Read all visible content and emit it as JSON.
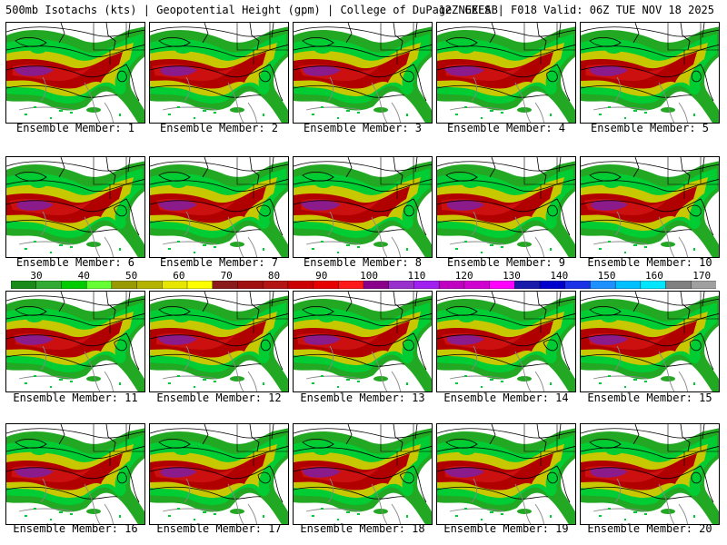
{
  "header": {
    "left": "500mb Isotachs (kts) | Geopotential Height (gpm) | College of DuPage NEXLAB",
    "right": "12Z GEFS | F018 Valid: 06Z TUE NOV 18 2025"
  },
  "members": [
    "Ensemble Member: 1",
    "Ensemble Member: 2",
    "Ensemble Member: 3",
    "Ensemble Member: 4",
    "Ensemble Member: 5",
    "Ensemble Member: 6",
    "Ensemble Member: 7",
    "Ensemble Member: 8",
    "Ensemble Member: 9",
    "Ensemble Member: 10",
    "Ensemble Member: 11",
    "Ensemble Member: 12",
    "Ensemble Member: 13",
    "Ensemble Member: 14",
    "Ensemble Member: 15",
    "Ensemble Member: 16",
    "Ensemble Member: 17",
    "Ensemble Member: 18",
    "Ensemble Member: 19",
    "Ensemble Member: 20"
  ],
  "colorbar": {
    "labels": [
      "30",
      "40",
      "50",
      "60",
      "70",
      "80",
      "90",
      "100",
      "110",
      "120",
      "130",
      "140",
      "150",
      "160",
      "170"
    ],
    "colors": [
      "#1a8a1a",
      "#33aa33",
      "#00cc00",
      "#66ff33",
      "#999900",
      "#b3b300",
      "#e6e600",
      "#ffff00",
      "#8b1a1a",
      "#a01010",
      "#b31515",
      "#cc0000",
      "#e60000",
      "#ff1a1a",
      "#8b008b",
      "#9932cc",
      "#a020f0",
      "#c000c0",
      "#d000d0",
      "#ff00ff",
      "#1a1aaa",
      "#0000cc",
      "#1a33e6",
      "#1e90ff",
      "#00bfff",
      "#00e6ff",
      "#808080",
      "#a0a0a0"
    ]
  }
}
